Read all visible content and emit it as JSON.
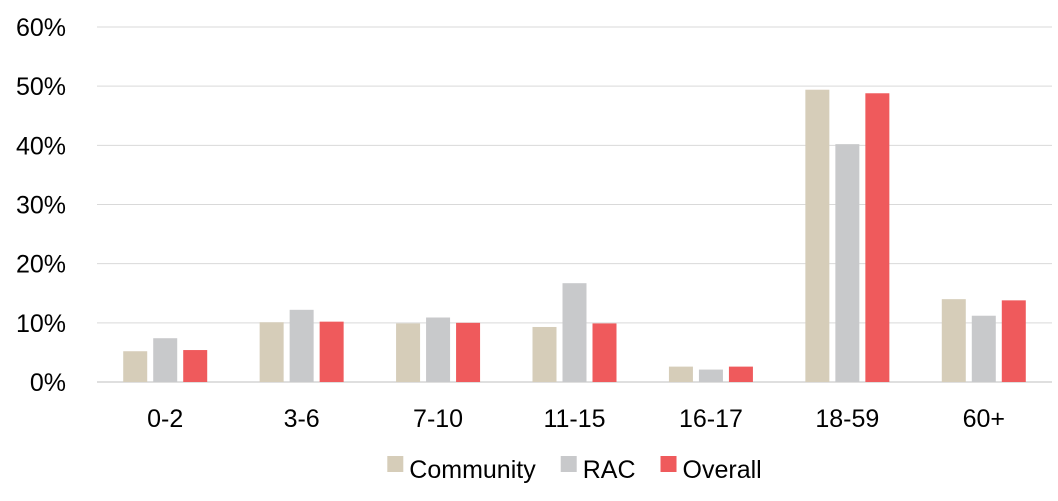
{
  "chart_data": {
    "type": "bar",
    "categories": [
      "0-2",
      "3-6",
      "7-10",
      "11-15",
      "16-17",
      "18-59",
      "60+"
    ],
    "series": [
      {
        "name": "Community",
        "color": "#d6cdb9",
        "values": [
          5.2,
          10.1,
          9.9,
          9.3,
          2.6,
          49.4,
          14.0
        ]
      },
      {
        "name": "RAC",
        "color": "#c8c9cb",
        "values": [
          7.4,
          12.2,
          10.9,
          16.7,
          2.1,
          40.2,
          11.2
        ]
      },
      {
        "name": "Overall",
        "color": "#ef5a5c",
        "values": [
          5.4,
          10.2,
          10.0,
          9.9,
          2.6,
          48.8,
          13.8
        ]
      }
    ],
    "yticks": [
      "0%",
      "10%",
      "20%",
      "30%",
      "40%",
      "50%",
      "60%"
    ],
    "ylim": [
      0,
      60
    ],
    "grid": true,
    "gridline_color": "#d9d9d9",
    "legend_position": "bottom"
  }
}
